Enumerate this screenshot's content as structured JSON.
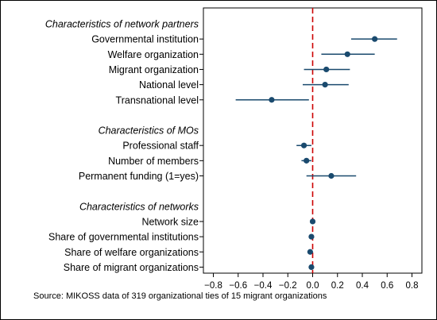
{
  "chart_data": {
    "type": "scatter",
    "subtype": "coefficient-plot",
    "colors": {
      "marker": "#1a4a6e",
      "reference_line": "#cc0000",
      "frame": "#000000"
    },
    "xticks": [
      "−0.8",
      "−0.6",
      "−0.4",
      "−0.2",
      "0.0",
      "0.2",
      "0.4",
      "0.6",
      "0.8"
    ],
    "xtick_values": [
      -0.8,
      -0.6,
      -0.4,
      -0.2,
      0.0,
      0.2,
      0.4,
      0.6,
      0.8
    ],
    "xlim": [
      -0.88,
      0.88
    ],
    "reference_x": 0,
    "source": "Source: MIKOSS data of 319 organizational ties of 15 migrant organizations",
    "groups": [
      {
        "header": "Characteristics of network partners",
        "rows": [
          {
            "label": "Governmental institution",
            "estimate": 0.5,
            "ci": [
              0.31,
              0.68
            ]
          },
          {
            "label": "Welfare organization",
            "estimate": 0.28,
            "ci": [
              0.07,
              0.5
            ]
          },
          {
            "label": "Migrant organization",
            "estimate": 0.11,
            "ci": [
              -0.07,
              0.3
            ]
          },
          {
            "label": "National level",
            "estimate": 0.1,
            "ci": [
              -0.08,
              0.29
            ]
          },
          {
            "label": "Transnational level",
            "estimate": -0.33,
            "ci": [
              -0.62,
              -0.03
            ]
          }
        ]
      },
      {
        "header": "Characteristics of MOs",
        "rows": [
          {
            "label": "Professional staff",
            "estimate": -0.07,
            "ci": [
              -0.13,
              -0.01
            ]
          },
          {
            "label": "Number of members",
            "estimate": -0.05,
            "ci": [
              -0.09,
              -0.01
            ]
          },
          {
            "label": "Permanent funding (1=yes)",
            "estimate": 0.15,
            "ci": [
              -0.05,
              0.35
            ]
          }
        ]
      },
      {
        "header": "Characteristics of networks",
        "rows": [
          {
            "label": "Network size",
            "estimate": 0.0,
            "ci": [
              -0.01,
              0.01
            ]
          },
          {
            "label": "Share of governmental institutions",
            "estimate": -0.01,
            "ci": [
              -0.02,
              0.0
            ]
          },
          {
            "label": "Share of welfare organizations",
            "estimate": -0.02,
            "ci": [
              -0.03,
              -0.01
            ]
          },
          {
            "label": "Share of migrant organizations",
            "estimate": -0.01,
            "ci": [
              -0.02,
              0.0
            ]
          }
        ]
      }
    ]
  }
}
